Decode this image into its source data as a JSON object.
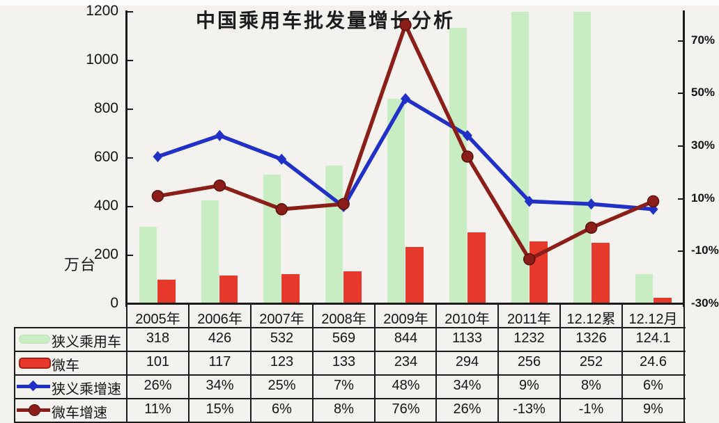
{
  "page": {
    "background": "#f3f2ee"
  },
  "chart_data": {
    "type": "bar",
    "subtype": "combo-bar-line-with-data-table",
    "title": "中国乘用车批发量增长分析",
    "categories": [
      "2005年",
      "2006年",
      "2007年",
      "2008年",
      "2009年",
      "2010年",
      "2011年",
      "12.12累",
      "12.12月"
    ],
    "series": [
      {
        "key": "narrow-pv",
        "name": "狭义乘用车",
        "type": "bar",
        "axis": "left",
        "color": "#c9edc2",
        "border_color": "#bfe4b8",
        "values": [
          318,
          426,
          532,
          569,
          844,
          1133,
          1232,
          1326,
          124.1
        ],
        "display": [
          "318",
          "426",
          "532",
          "569",
          "844",
          "1133",
          "1232",
          "1326",
          "124.1"
        ]
      },
      {
        "key": "mini-vehicle",
        "name": "微车",
        "type": "bar",
        "axis": "left",
        "color": "#e6392b",
        "border_color": "#a82015",
        "values": [
          101,
          117,
          123,
          133,
          234,
          294,
          256,
          252,
          24.6
        ],
        "display": [
          "101",
          "117",
          "123",
          "133",
          "234",
          "294",
          "256",
          "252",
          "24.6"
        ]
      },
      {
        "key": "narrow-pv-growth",
        "name": "狭义乘增速",
        "type": "line",
        "axis": "right",
        "color": "#2130c6",
        "marker": "diamond",
        "values": [
          26,
          34,
          25,
          7,
          48,
          34,
          9,
          8,
          6
        ],
        "display": [
          "26%",
          "34%",
          "25%",
          "7%",
          "48%",
          "34%",
          "9%",
          "8%",
          "6%"
        ]
      },
      {
        "key": "mini-vehicle-growth",
        "name": "微车增速",
        "type": "line",
        "axis": "right",
        "color": "#8b1e18",
        "marker": "circle",
        "values": [
          11,
          15,
          6,
          8,
          76,
          26,
          -13,
          -1,
          9
        ],
        "display": [
          "11%",
          "15%",
          "6%",
          "8%",
          "76%",
          "26%",
          "-13%",
          "-1%",
          "9%"
        ]
      }
    ],
    "left_axis": {
      "min": 0,
      "max": 1200,
      "unit": "万台",
      "ticks": [
        {
          "v": 0,
          "label": "0"
        },
        {
          "v": 200,
          "label": "200"
        },
        {
          "v": 400,
          "label": "400"
        },
        {
          "v": 600,
          "label": "600"
        },
        {
          "v": 800,
          "label": "800"
        },
        {
          "v": 1000,
          "label": "1000"
        },
        {
          "v": 1200,
          "label": "1200"
        }
      ]
    },
    "right_axis": {
      "min": -30,
      "max": 81,
      "ticks": [
        {
          "v": 70,
          "label": "70%"
        },
        {
          "v": 50,
          "label": "50%"
        },
        {
          "v": 30,
          "label": "30%"
        },
        {
          "v": 10,
          "label": "10%"
        },
        {
          "v": -10,
          "label": "-10%"
        },
        {
          "v": -30,
          "label": "-30%"
        }
      ]
    },
    "grid": false,
    "legend_position": "table-left-column",
    "ink_color": "#1b1b1b"
  }
}
